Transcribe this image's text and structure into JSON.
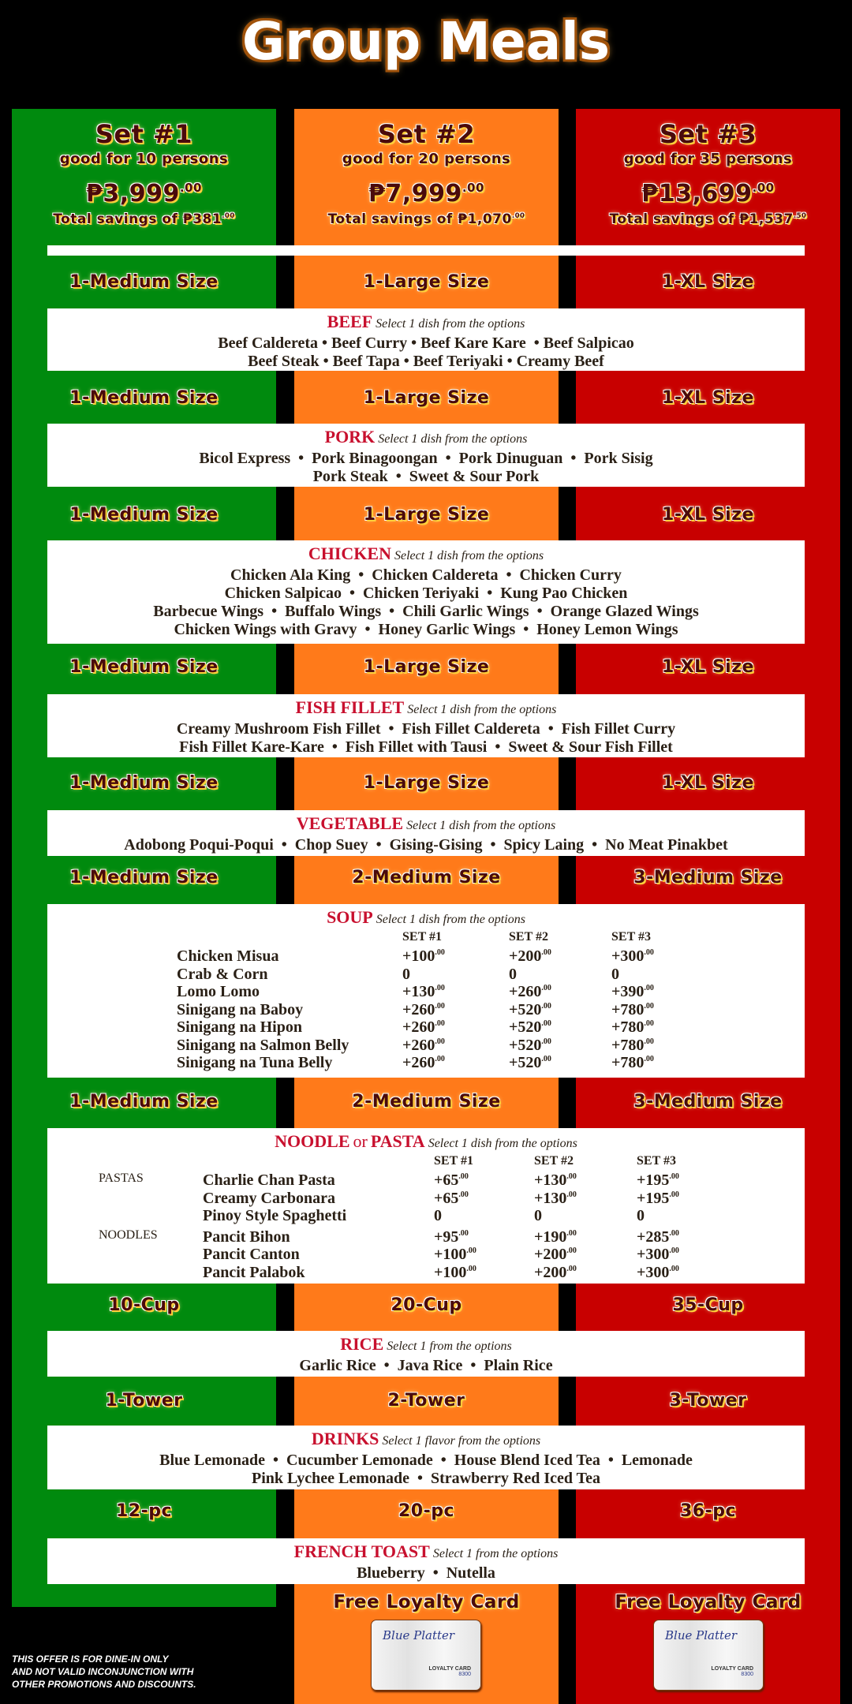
{
  "title": "Group Meals",
  "colors": {
    "set1": "#008a0e",
    "set2": "#ff7a1a",
    "set3": "#c80000",
    "heading_red": "#c8102e"
  },
  "sets": [
    {
      "name": "Set #1",
      "persons": "good for 10 persons",
      "price": "₱3,999",
      "price_cents": ".00",
      "savings": "Total savings of ₱381",
      "savings_cents": ".00"
    },
    {
      "name": "Set #2",
      "persons": "good for 20 persons",
      "price": "₱7,999",
      "price_cents": ".00",
      "savings": "Total savings of ₱1,070",
      "savings_cents": ".00"
    },
    {
      "name": "Set #3",
      "persons": "good for 35 persons",
      "price": "₱13,699",
      "price_cents": ".00",
      "savings": "Total savings of ₱1,537",
      "savings_cents": ".50"
    }
  ],
  "sections": [
    {
      "id": "beef",
      "sizes": [
        "1-Medium Size",
        "1-Large Size",
        "1-XL Size"
      ],
      "title": "BEEF",
      "subtitle": "Select 1 dish from the options",
      "lines": [
        "Beef Caldereta • Beef Curry • Beef Kare Kare  • Beef Salpicao",
        "Beef Steak • Beef Tapa • Beef Teriyaki • Creamy Beef"
      ]
    },
    {
      "id": "pork",
      "sizes": [
        "1-Medium Size",
        "1-Large Size",
        "1-XL Size"
      ],
      "title": "PORK",
      "subtitle": "Select 1 dish from the options",
      "lines": [
        "Bicol Express  •  Pork Binagoongan  •  Pork Dinuguan  •  Pork Sisig",
        "Pork Steak  •  Sweet & Sour Pork"
      ]
    },
    {
      "id": "chicken",
      "sizes": [
        "1-Medium Size",
        "1-Large Size",
        "1-XL Size"
      ],
      "title": "CHICKEN",
      "subtitle": "Select 1 dish from the options",
      "lines": [
        "Chicken Ala King  •  Chicken Caldereta  •  Chicken Curry",
        "Chicken Salpicao  •  Chicken Teriyaki  •  Kung Pao Chicken",
        "Barbecue Wings  •  Buffalo Wings  •  Chili Garlic Wings  •  Orange Glazed Wings",
        "Chicken Wings with Gravy  •  Honey Garlic Wings  •  Honey Lemon Wings"
      ]
    },
    {
      "id": "fish",
      "sizes": [
        "1-Medium Size",
        "1-Large Size",
        "1-XL Size"
      ],
      "title": "FISH FILLET",
      "subtitle": "Select 1 dish from the options",
      "lines": [
        "Creamy Mushroom Fish Fillet  •  Fish Fillet Caldereta  •  Fish Fillet Curry",
        "Fish Fillet Kare-Kare  •  Fish Fillet with Tausi  •  Sweet & Sour Fish Fillet"
      ]
    },
    {
      "id": "vegetable",
      "sizes": [
        "1-Medium Size",
        "1-Large Size",
        "1-XL Size"
      ],
      "title": "VEGETABLE",
      "subtitle": "Select 1 dish from the options",
      "lines": [
        "Adobong Poqui-Poqui  •  Chop Suey  •  Gising-Gising  •  Spicy Laing  •  No Meat Pinakbet"
      ]
    },
    {
      "id": "soup",
      "sizes": [
        "1-Medium Size",
        "2-Medium Size",
        "3-Medium Size"
      ],
      "title": "SOUP",
      "subtitle": "Select 1 dish from the options",
      "table": {
        "headers": [
          "SET #1",
          "SET #2",
          "SET #3"
        ],
        "rows": [
          {
            "name": "Chicken Misua",
            "prices": [
              "+100.00",
              "+200.00",
              "+300.00"
            ]
          },
          {
            "name": "Crab & Corn",
            "prices": [
              "0",
              "0",
              "0"
            ]
          },
          {
            "name": "Lomo Lomo",
            "prices": [
              "+130.00",
              "+260.00",
              "+390.00"
            ]
          },
          {
            "name": "Sinigang na Baboy",
            "prices": [
              "+260.00",
              "+520.00",
              "+780.00"
            ]
          },
          {
            "name": "Sinigang na Hipon",
            "prices": [
              "+260.00",
              "+520.00",
              "+780.00"
            ]
          },
          {
            "name": "Sinigang na Salmon Belly",
            "prices": [
              "+260.00",
              "+520.00",
              "+780.00"
            ]
          },
          {
            "name": "Sinigang na Tuna Belly",
            "prices": [
              "+260.00",
              "+520.00",
              "+780.00"
            ]
          }
        ]
      }
    },
    {
      "id": "noodle",
      "sizes": [
        "1-Medium Size",
        "2-Medium Size",
        "3-Medium Size"
      ],
      "title": "NOODLE",
      "title_joiner": "or",
      "title2": "PASTA",
      "subtitle": "Select 1 dish from the options",
      "table": {
        "headers": [
          "SET #1",
          "SET #2",
          "SET #3"
        ],
        "rows": [
          {
            "group": "PASTAS",
            "name": "Charlie Chan Pasta",
            "prices": [
              "+65.00",
              "+130.00",
              "+195.00"
            ]
          },
          {
            "name": "Creamy Carbonara",
            "prices": [
              "+65.00",
              "+130.00",
              "+195.00"
            ]
          },
          {
            "name": "Pinoy Style Spaghetti",
            "prices": [
              "0",
              "0",
              "0"
            ]
          },
          {
            "group": "NOODLES",
            "name": "Pancit Bihon",
            "prices": [
              "+95.00",
              "+190.00",
              "+285.00"
            ]
          },
          {
            "name": "Pancit Canton",
            "prices": [
              "+100.00",
              "+200.00",
              "+300.00"
            ]
          },
          {
            "name": "Pancit Palabok",
            "prices": [
              "+100.00",
              "+200.00",
              "+300.00"
            ]
          }
        ]
      }
    },
    {
      "id": "rice",
      "sizes": [
        "10-Cup",
        "20-Cup",
        "35-Cup"
      ],
      "title": "RICE",
      "subtitle": "Select 1 from the options",
      "lines": [
        "Garlic Rice  •  Java Rice  •  Plain Rice"
      ]
    },
    {
      "id": "drinks",
      "sizes": [
        "1-Tower",
        "2-Tower",
        "3-Tower"
      ],
      "title": "DRINKS",
      "subtitle": "Select 1 flavor from the options",
      "lines": [
        "Blue Lemonade  •  Cucumber Lemonade  •  House Blend Iced Tea  •  Lemonade",
        "Pink Lychee Lemonade  •  Strawberry Red Iced Tea"
      ]
    },
    {
      "id": "french-toast",
      "sizes": [
        "12-pc",
        "20-pc",
        "36-pc"
      ],
      "title": "FRENCH TOAST",
      "subtitle": "Select 1 from the options",
      "lines": [
        "Blueberry  •  Nutella"
      ]
    }
  ],
  "loyalty": {
    "label": "Free Loyalty Card",
    "card_brand": "Blue Platter",
    "card_label": "LOYALTY CARD",
    "card_number": "8300"
  },
  "disclaimer": [
    "This offer is for dine-in only",
    "and not valid inconjunction with",
    "other promotions and discounts."
  ]
}
